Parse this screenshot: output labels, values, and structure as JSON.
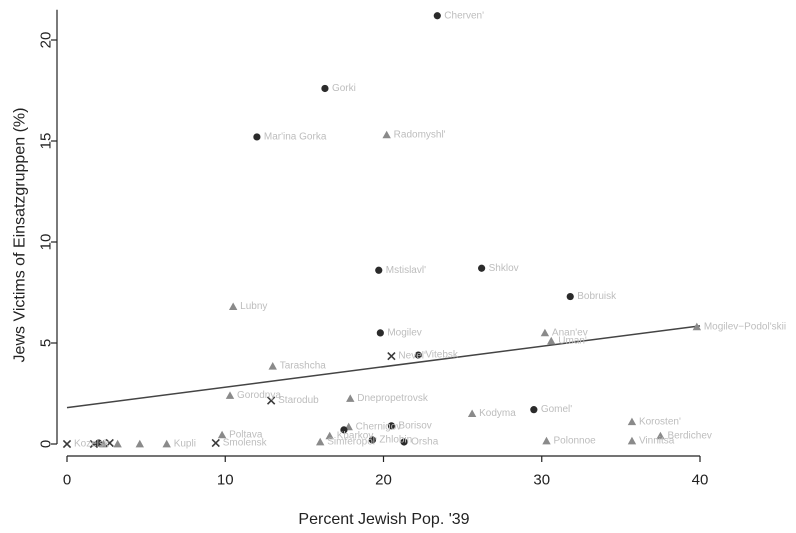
{
  "chart_data": {
    "type": "scatter",
    "title": "",
    "xlabel": "Percent Jewish Pop. '39",
    "ylabel": "Jews Victims of Einsatzgruppen (%)",
    "xlim": [
      0,
      40
    ],
    "ylim": [
      0,
      21.5
    ],
    "xticks": [
      "0",
      "10",
      "20",
      "30",
      "40"
    ],
    "yticks": [
      "0",
      "5",
      "10",
      "15",
      "20"
    ],
    "grid": false,
    "legend": "none",
    "fit_line": {
      "x": [
        0,
        40
      ],
      "y": [
        1.8,
        5.85
      ]
    },
    "points": [
      {
        "x": 23.4,
        "y": 21.2,
        "marker": "circle",
        "label": "Cherven'"
      },
      {
        "x": 16.3,
        "y": 17.6,
        "marker": "circle",
        "label": "Gorki"
      },
      {
        "x": 12.0,
        "y": 15.2,
        "marker": "circle",
        "label": "Mar'ina Gorka"
      },
      {
        "x": 20.2,
        "y": 15.3,
        "marker": "triangle",
        "label": "Radomyshl'"
      },
      {
        "x": 19.7,
        "y": 8.6,
        "marker": "circle",
        "label": "Mstislavl'"
      },
      {
        "x": 26.2,
        "y": 8.7,
        "marker": "circle",
        "label": "Shklov"
      },
      {
        "x": 10.5,
        "y": 6.8,
        "marker": "triangle",
        "label": "Lubny"
      },
      {
        "x": 31.8,
        "y": 7.3,
        "marker": "circle",
        "label": "Bobruisk"
      },
      {
        "x": 39.8,
        "y": 5.8,
        "marker": "triangle",
        "label": "Mogilev−Podol'skii"
      },
      {
        "x": 19.8,
        "y": 5.5,
        "marker": "circle",
        "label": "Mogilev"
      },
      {
        "x": 30.2,
        "y": 5.5,
        "marker": "triangle",
        "label": "Anan'ev"
      },
      {
        "x": 30.6,
        "y": 5.1,
        "marker": "triangle",
        "label": "Uman'"
      },
      {
        "x": 22.2,
        "y": 4.4,
        "marker": "circle",
        "label": "Vitebsk"
      },
      {
        "x": 20.5,
        "y": 4.35,
        "marker": "cross",
        "label": "Nevel'"
      },
      {
        "x": 13.0,
        "y": 3.85,
        "marker": "triangle",
        "label": "Tarashcha"
      },
      {
        "x": 10.3,
        "y": 2.4,
        "marker": "triangle",
        "label": "Gorodnya"
      },
      {
        "x": 12.9,
        "y": 2.15,
        "marker": "cross",
        "label": "Starodub"
      },
      {
        "x": 17.9,
        "y": 2.25,
        "marker": "triangle",
        "label": "Dnepropetrovsk"
      },
      {
        "x": 29.5,
        "y": 1.7,
        "marker": "circle",
        "label": "Gomel'"
      },
      {
        "x": 25.6,
        "y": 1.5,
        "marker": "triangle",
        "label": "Kodyma"
      },
      {
        "x": 35.7,
        "y": 1.1,
        "marker": "triangle",
        "label": "Korosten'"
      },
      {
        "x": 20.5,
        "y": 0.9,
        "marker": "circle",
        "label": "Borisov"
      },
      {
        "x": 17.8,
        "y": 0.85,
        "marker": "triangle",
        "label": "Chernigov"
      },
      {
        "x": 17.5,
        "y": 0.7,
        "marker": "circle",
        "label": ""
      },
      {
        "x": 9.8,
        "y": 0.45,
        "marker": "triangle",
        "label": "Poltava"
      },
      {
        "x": 16.6,
        "y": 0.4,
        "marker": "triangle",
        "label": "Kharkov"
      },
      {
        "x": 37.5,
        "y": 0.4,
        "marker": "triangle",
        "label": "Berdichev"
      },
      {
        "x": 19.3,
        "y": 0.2,
        "marker": "circle",
        "label": "Zhlobin"
      },
      {
        "x": 16.0,
        "y": 0.1,
        "marker": "triangle",
        "label": "Simferopol'"
      },
      {
        "x": 21.3,
        "y": 0.1,
        "marker": "circle",
        "label": "Orsha"
      },
      {
        "x": 30.3,
        "y": 0.15,
        "marker": "triangle",
        "label": "Polonnoe"
      },
      {
        "x": 35.7,
        "y": 0.15,
        "marker": "triangle",
        "label": "Vinnitsa"
      },
      {
        "x": 9.4,
        "y": 0.05,
        "marker": "cross",
        "label": "Smolensk"
      },
      {
        "x": 0.0,
        "y": 0.0,
        "marker": "cross",
        "label": "Kozelsk"
      },
      {
        "x": 1.7,
        "y": 0.0,
        "marker": "cross",
        "label": ""
      },
      {
        "x": 2.0,
        "y": 0.05,
        "marker": "circle",
        "label": ""
      },
      {
        "x": 2.3,
        "y": 0.0,
        "marker": "triangle",
        "label": ""
      },
      {
        "x": 2.7,
        "y": 0.05,
        "marker": "cross",
        "label": ""
      },
      {
        "x": 3.2,
        "y": 0.0,
        "marker": "triangle",
        "label": ""
      },
      {
        "x": 4.6,
        "y": 0.0,
        "marker": "triangle",
        "label": ""
      },
      {
        "x": 6.3,
        "y": 0.0,
        "marker": "triangle",
        "label": "Kupli"
      }
    ]
  }
}
